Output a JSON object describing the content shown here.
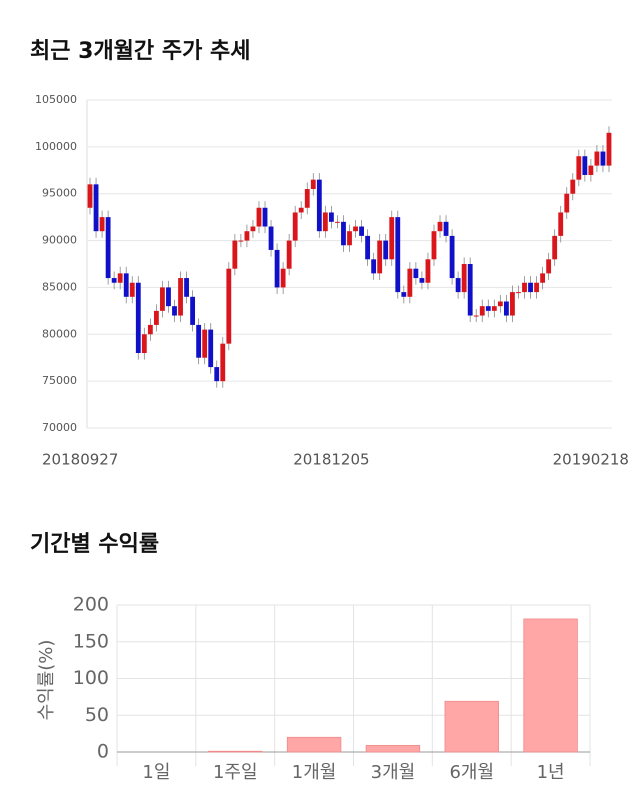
{
  "chart_data": [
    {
      "type": "candlestick",
      "title": "최근 3개월간 주가 추세",
      "categories": [
        "20180927",
        null,
        null,
        null,
        null,
        null,
        null,
        null,
        null,
        null,
        null,
        null,
        null,
        null,
        null,
        null,
        null,
        null,
        null,
        null,
        null,
        null,
        null,
        null,
        null,
        null,
        null,
        null,
        null,
        null,
        null,
        null,
        null,
        null,
        null,
        null,
        null,
        null,
        null,
        null,
        "20181205",
        null,
        null,
        null,
        null,
        null,
        null,
        null,
        null,
        null,
        null,
        null,
        null,
        null,
        null,
        null,
        null,
        null,
        null,
        null,
        null,
        null,
        null,
        null,
        null,
        null,
        null,
        null,
        null,
        null,
        null,
        null,
        null,
        null,
        null,
        null,
        null,
        null,
        null,
        null,
        null,
        null,
        null,
        null,
        null,
        null,
        "20190218"
      ],
      "open": [
        93500,
        96000,
        91000,
        92500,
        86000,
        85500,
        86500,
        84000,
        85500,
        78000,
        80000,
        81000,
        82500,
        85000,
        83000,
        82000,
        86000,
        84000,
        81000,
        77500,
        80500,
        76500,
        75000,
        79000,
        87000,
        90000,
        90000,
        91000,
        91500,
        93500,
        91500,
        89000,
        85000,
        87000,
        90000,
        93000,
        93500,
        95500,
        96500,
        91000,
        93000,
        92000,
        92000,
        89500,
        91000,
        91500,
        90500,
        88000,
        86500,
        90000,
        88000,
        92500,
        84500,
        84000,
        87000,
        86000,
        85500,
        88000,
        91000,
        92000,
        90500,
        86000,
        84500,
        87500,
        82000,
        82000,
        83000,
        82500,
        83000,
        83500,
        82000,
        84500,
        84500,
        85500,
        84500,
        85500,
        86500,
        88000,
        90500,
        93000,
        95000,
        96500,
        99000,
        97000,
        98000,
        99500,
        98000
      ],
      "high": [
        96700,
        96700,
        93200,
        93200,
        86700,
        87200,
        87200,
        86200,
        86200,
        80700,
        81700,
        83200,
        85700,
        85700,
        83700,
        86700,
        86700,
        84700,
        81700,
        81200,
        81200,
        77200,
        79700,
        87700,
        90700,
        90700,
        91700,
        92200,
        94200,
        94200,
        92200,
        89700,
        87700,
        90700,
        93700,
        94200,
        96200,
        97200,
        97200,
        93700,
        93700,
        92700,
        92700,
        91700,
        92200,
        92200,
        91200,
        88700,
        90700,
        90700,
        93200,
        93200,
        85200,
        87700,
        87700,
        86700,
        88700,
        91700,
        92700,
        92700,
        91200,
        86700,
        88200,
        88200,
        82700,
        83700,
        83700,
        83700,
        84200,
        84200,
        85200,
        85200,
        86200,
        86200,
        86200,
        87200,
        88700,
        91200,
        93700,
        95700,
        97200,
        99700,
        99700,
        98700,
        100200,
        100200,
        102200
      ],
      "low": [
        92800,
        90300,
        90300,
        85300,
        84800,
        84800,
        83300,
        83300,
        77300,
        77300,
        79300,
        80300,
        81800,
        82300,
        81300,
        81300,
        83300,
        80300,
        76800,
        76800,
        75800,
        74300,
        74300,
        78300,
        86300,
        89300,
        89300,
        90300,
        90800,
        90800,
        88300,
        84300,
        84300,
        86300,
        89300,
        92300,
        92800,
        94800,
        90300,
        90300,
        91300,
        91300,
        88800,
        88800,
        90300,
        89800,
        87300,
        85800,
        85800,
        87300,
        87300,
        83800,
        83300,
        83300,
        85300,
        84800,
        84800,
        87300,
        90300,
        89800,
        85300,
        83800,
        83800,
        81300,
        81300,
        81300,
        81800,
        81800,
        82300,
        81300,
        81300,
        83800,
        83800,
        83800,
        83800,
        84800,
        85800,
        87300,
        89800,
        92300,
        94300,
        95800,
        96300,
        96300,
        97300,
        97300,
        97300
      ],
      "close": [
        96000,
        91000,
        92500,
        86000,
        85500,
        86500,
        84000,
        85500,
        78000,
        80000,
        81000,
        82500,
        85000,
        83000,
        82000,
        86000,
        84000,
        81000,
        77500,
        80500,
        76500,
        75000,
        79000,
        87000,
        90000,
        90000,
        91000,
        91500,
        93500,
        91500,
        89000,
        85000,
        87000,
        90000,
        93000,
        93500,
        95500,
        96500,
        91000,
        93000,
        92000,
        92000,
        89500,
        91000,
        91500,
        90500,
        88000,
        86500,
        90000,
        88000,
        92500,
        84500,
        84000,
        87000,
        86000,
        85500,
        88000,
        91000,
        92000,
        90500,
        86000,
        84500,
        87500,
        82000,
        82000,
        83000,
        82500,
        83000,
        83500,
        82000,
        84500,
        84500,
        85500,
        84500,
        85500,
        86500,
        88000,
        90500,
        93000,
        95000,
        96500,
        99000,
        97000,
        98000,
        99500,
        98000,
        101500
      ],
      "up_color": "#d9161b",
      "down_color": "#1010c8",
      "ylim": [
        70000,
        105000
      ],
      "yticks": [
        70000,
        75000,
        80000,
        85000,
        90000,
        95000,
        100000,
        105000
      ],
      "grid": true
    },
    {
      "type": "bar",
      "title": "기간별 수익률",
      "ylabel": "수익률(%)",
      "categories": [
        "1일",
        "1주일",
        "1개월",
        "3개월",
        "6개월",
        "1년"
      ],
      "values": [
        0,
        1,
        20,
        9,
        69,
        181
      ],
      "color": "#ffa6a6",
      "ylim": [
        0,
        200
      ],
      "yticks": [
        0,
        50,
        100,
        150,
        200
      ],
      "grid": true
    }
  ]
}
